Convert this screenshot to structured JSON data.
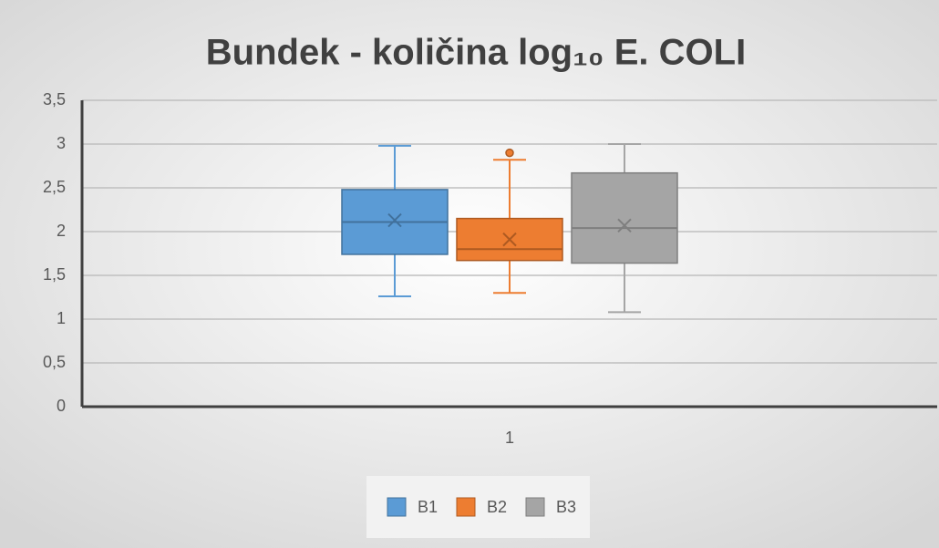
{
  "chart_data": {
    "type": "box",
    "title": "Bundek - količina log₁₀ E. COLI",
    "categories": [
      "1"
    ],
    "series": [
      {
        "name": "B1",
        "color": "#5b9bd5",
        "stroke": "#41719c",
        "min": 1.26,
        "q1": 1.74,
        "median": 2.11,
        "q3": 2.48,
        "max": 2.98,
        "mean": 2.13,
        "outliers": []
      },
      {
        "name": "B2",
        "color": "#ed7d31",
        "stroke": "#ae5a21",
        "min": 1.3,
        "q1": 1.67,
        "median": 1.8,
        "q3": 2.15,
        "max": 2.82,
        "mean": 1.91,
        "outliers": [
          2.9
        ]
      },
      {
        "name": "B3",
        "color": "#a5a5a5",
        "stroke": "#7f7f7f",
        "min": 1.08,
        "q1": 1.64,
        "median": 2.04,
        "q3": 2.67,
        "max": 3.0,
        "mean": 2.07,
        "outliers": []
      }
    ],
    "ylim": [
      0,
      3.5
    ],
    "yticks": [
      0,
      {
        "value": 0.5,
        "label": "0,5"
      },
      1,
      {
        "value": 1.5,
        "label": "1,5"
      },
      2,
      {
        "value": 2.5,
        "label": "2,5"
      },
      3,
      {
        "value": 3.5,
        "label": "3,5"
      }
    ],
    "grid": true,
    "legend": "bottom"
  }
}
